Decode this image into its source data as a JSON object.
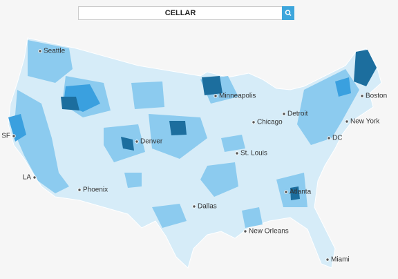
{
  "search": {
    "query": "CELLAR"
  },
  "cities": [
    "Seattle",
    "Minneapolis",
    "Boston",
    "Detroit",
    "Chicago",
    "New York",
    "SF",
    "Denver",
    "DC",
    "St. Louis",
    "LA",
    "Phoenix",
    "Atlanta",
    "Dallas",
    "New Orleans",
    "Miami"
  ]
}
